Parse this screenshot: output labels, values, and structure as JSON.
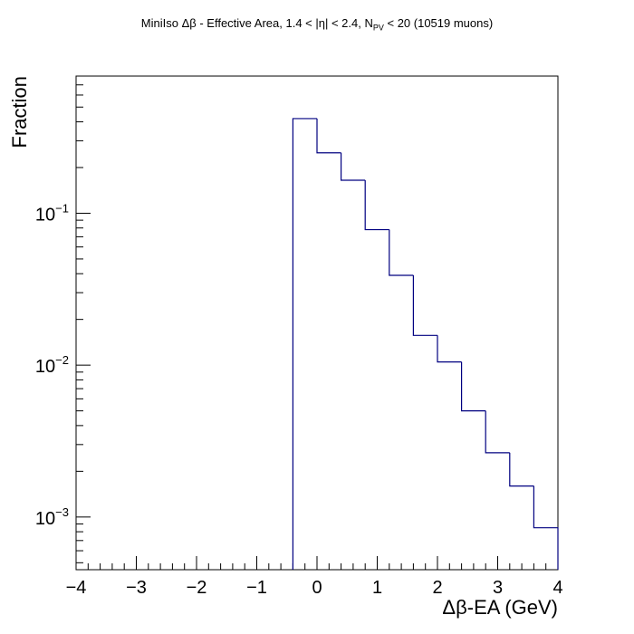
{
  "chart_data": {
    "type": "bar",
    "title_parts": {
      "before_sub": "MiniIso Δβ - Effective Area, 1.4 < |η| < 2.4, N",
      "sub": "PV",
      "after_sub": " < 20 (10519 muons)"
    },
    "xlabel": "Δβ-EA (GeV)",
    "ylabel": "Fraction",
    "xlim": [
      -4,
      4
    ],
    "ylim": [
      0.00045,
      0.8
    ],
    "yscale": "log",
    "grid": false,
    "legend": "none",
    "line_color": "#000080",
    "x_ticks": [
      {
        "value": -4,
        "label": "−4"
      },
      {
        "value": -3,
        "label": "−3"
      },
      {
        "value": -2,
        "label": "−2"
      },
      {
        "value": -1,
        "label": "−1"
      },
      {
        "value": 0,
        "label": "0"
      },
      {
        "value": 1,
        "label": "1"
      },
      {
        "value": 2,
        "label": "2"
      },
      {
        "value": 3,
        "label": "3"
      },
      {
        "value": 4,
        "label": "4"
      }
    ],
    "y_ticks": [
      {
        "value": 0.1,
        "base": "10",
        "exp": "−1"
      },
      {
        "value": 0.01,
        "base": "10",
        "exp": "−2"
      },
      {
        "value": 0.001,
        "base": "10",
        "exp": "−3"
      }
    ],
    "bins": [
      {
        "x0": -0.4,
        "x1": 0.0,
        "value": 0.42
      },
      {
        "x0": 0.0,
        "x1": 0.4,
        "value": 0.25
      },
      {
        "x0": 0.4,
        "x1": 0.8,
        "value": 0.165
      },
      {
        "x0": 0.8,
        "x1": 1.2,
        "value": 0.078
      },
      {
        "x0": 1.2,
        "x1": 1.6,
        "value": 0.039
      },
      {
        "x0": 1.6,
        "x1": 2.0,
        "value": 0.0157
      },
      {
        "x0": 2.0,
        "x1": 2.4,
        "value": 0.0105
      },
      {
        "x0": 2.4,
        "x1": 2.8,
        "value": 0.005
      },
      {
        "x0": 2.8,
        "x1": 3.2,
        "value": 0.00265
      },
      {
        "x0": 3.2,
        "x1": 3.6,
        "value": 0.0016
      },
      {
        "x0": 3.6,
        "x1": 4.0,
        "value": 0.00085
      }
    ]
  }
}
